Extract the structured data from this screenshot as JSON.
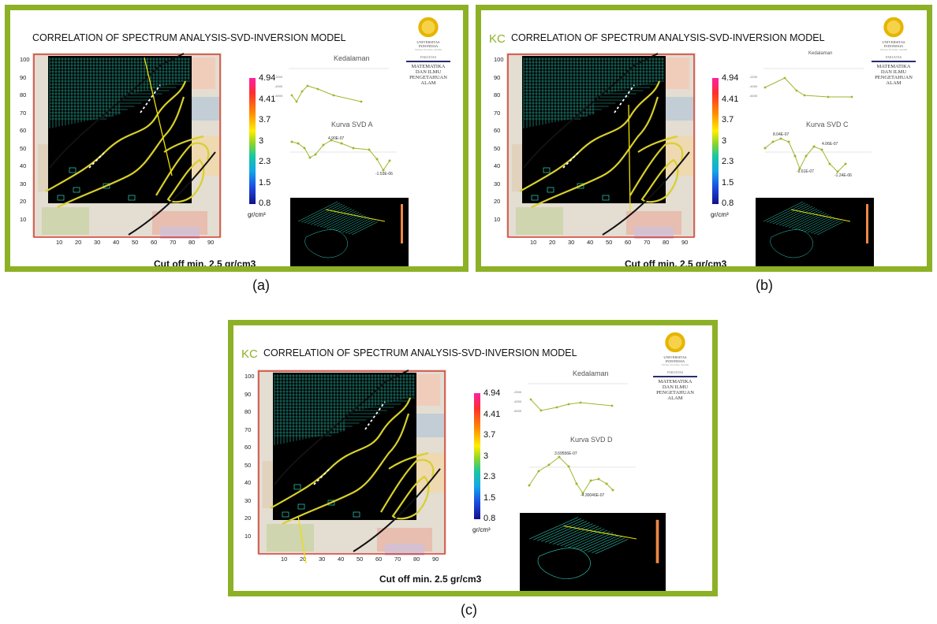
{
  "panels": [
    {
      "id": "a",
      "title": "CORRELATION OF SPECTRUM ANALYSIS-SVD-INVERSION MODEL",
      "title_ghost": "",
      "depth_title": "Kedalaman",
      "svd_title": "Kurva SVD A",
      "svd_peak_label": "4.90E-07",
      "svd_min_label": "-1.53E-06",
      "cutoff": "Cut off min. 2.5 gr/cm3",
      "caption": "(a)"
    },
    {
      "id": "b",
      "title": "CORRELATION OF SPECTRUM ANALYSIS-SVD-INVERSION MODEL",
      "title_ghost": "KC",
      "depth_title": "Kedalaman",
      "svd_title": "Kurva SVD C",
      "svd_peak_label": "8.04E-07",
      "svd_peak2_label": "4.06E-07",
      "svd_min_label": "-9.61E-07",
      "svd_min2_label": "-1.24E-06",
      "cutoff": "Cut off min. 2.5 gr/cm3",
      "caption": "(b)"
    },
    {
      "id": "c",
      "title": "CORRELATION OF SPECTRUM ANALYSIS-SVD-INVERSION MODEL",
      "title_ghost": "KC",
      "depth_title": "Kedalaman",
      "svd_title": "Kurva SVD D",
      "svd_peak_label": "3.69556E-07",
      "svd_min_label": "-4.30046E-07",
      "cutoff": "Cut off min. 2.5 gr/cm3",
      "caption": "(c)"
    }
  ],
  "logo": {
    "university": [
      "UNIVERSITAS",
      "INDONESIA"
    ],
    "motto": "Veritas, Probitas, Iustitia",
    "fakultas_small": "FAKULTAS",
    "fakultas": [
      "MATEMATIKA",
      "DAN ILMU",
      "PENGETAHUAN",
      "ALAM"
    ]
  },
  "map_axes": {
    "y_ticks": [
      "100",
      "90",
      "80",
      "70",
      "60",
      "50",
      "40",
      "30",
      "20",
      "10"
    ],
    "x_ticks": [
      "10",
      "20",
      "30",
      "40",
      "50",
      "60",
      "70",
      "80",
      "90"
    ]
  },
  "colorbar": {
    "values": [
      "4.94",
      "4.41",
      "3.7",
      "3",
      "2.3",
      "1.5",
      "0.8"
    ],
    "unit": "gr/cm³"
  },
  "colors": {
    "frame": "#8db126",
    "contour": "#d8d02a",
    "density_grid": "#2fd6c0",
    "chart_line": "#9bb82e"
  }
}
